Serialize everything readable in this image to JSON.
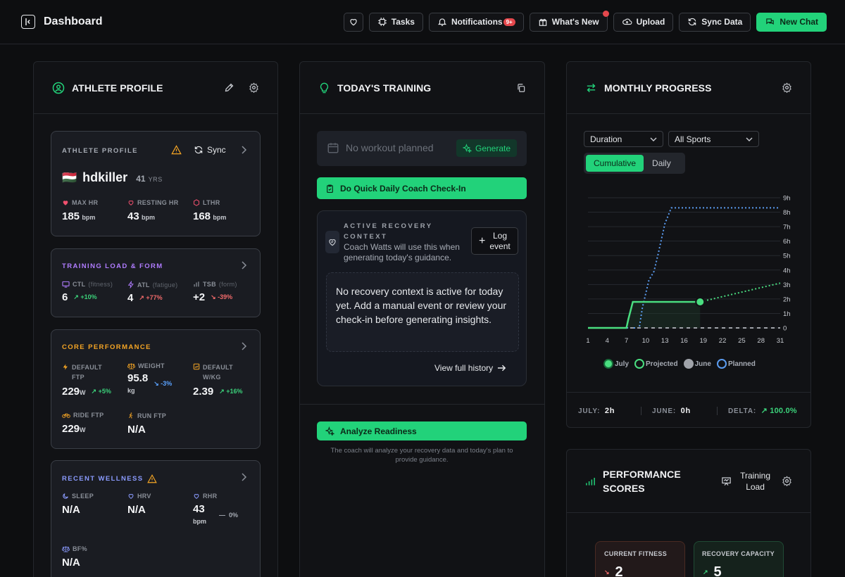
{
  "header": {
    "title": "Dashboard",
    "tasks_label": "Tasks",
    "notifications_label": "Notifications",
    "notifications_badge": "9+",
    "whats_new_label": "What's New",
    "upload_label": "Upload",
    "sync_label": "Sync Data",
    "new_chat_label": "New Chat"
  },
  "athlete_col": {
    "title": "ATHLETE PROFILE",
    "profile_card": {
      "title": "ATHLETE PROFILE",
      "sync_label": "Sync",
      "flag": "🇭🇺",
      "name": "hdkiller",
      "age": "41",
      "age_unit": "YRS",
      "metrics": [
        {
          "label": "MAX HR",
          "value": "185",
          "unit": "bpm"
        },
        {
          "label": "RESTING HR",
          "value": "43",
          "unit": "bpm"
        },
        {
          "label": "LTHR",
          "value": "168",
          "unit": "bpm"
        }
      ]
    },
    "training_load": {
      "title": "TRAINING LOAD & FORM",
      "metrics": [
        {
          "label": "CTL",
          "sub": "(fitness)",
          "value": "6",
          "trend": "+10%"
        },
        {
          "label": "ATL",
          "sub": "(fatigue)",
          "value": "4",
          "trend": "+77%"
        },
        {
          "label": "TSB",
          "sub": "(form)",
          "value": "+2",
          "trend": "-39%"
        }
      ]
    },
    "core_performance": {
      "title": "CORE PERFORMANCE",
      "ftp_label_1": "DEFAULT",
      "ftp_label_2": "FTP",
      "ftp_value": "229",
      "ftp_unit": "W",
      "ftp_trend": "+5%",
      "weight_label": "WEIGHT",
      "weight_value": "95.8",
      "weight_unit": "kg",
      "weight_trend": "-3%",
      "wkg_label_1": "DEFAULT",
      "wkg_label_2": "W/KG",
      "wkg_value": "2.39",
      "wkg_trend": "+16%",
      "ride_ftp_label": "RIDE FTP",
      "ride_ftp_value": "229",
      "ride_ftp_unit": "W",
      "run_ftp_label": "RUN FTP",
      "run_ftp_value": "N/A"
    },
    "wellness": {
      "title": "RECENT WELLNESS",
      "sleep_label": "SLEEP",
      "sleep_value": "N/A",
      "hrv_label": "HRV",
      "hrv_value": "N/A",
      "rhr_label": "RHR",
      "rhr_value": "43",
      "rhr_unit": "bpm",
      "rhr_trend": "0%",
      "bf_label": "BF%",
      "bf_value": "N/A"
    }
  },
  "training_col": {
    "title": "TODAY'S TRAINING",
    "no_workout": "No workout planned",
    "generate_label": "Generate",
    "checkin_label": "Do Quick Daily Coach Check-In",
    "recovery_title_1": "ACTIVE RECOVERY",
    "recovery_title_2": "CONTEXT",
    "recovery_desc_1": "Coach Watts will use this when",
    "recovery_desc_2": "generating today's guidance.",
    "log_event_1": "Log",
    "log_event_2": "event",
    "empty_text": "No recovery context is active for today yet. Add a manual event or review your check-in before generating insights.",
    "history_link": "View full history",
    "analyze_label": "Analyze Readiness",
    "analyze_note_1": "The coach will analyze your recovery data and today's plan to",
    "analyze_note_2": "provide guidance."
  },
  "progress_col": {
    "title": "MONTHLY PROGRESS",
    "metric_select": "Duration",
    "sport_select": "All Sports",
    "toggle_active": "Cumulative",
    "toggle_inactive": "Daily",
    "summary": {
      "july_label": "JULY:",
      "july_value": "2h",
      "june_label": "JUNE:",
      "june_value": "0h",
      "delta_label": "DELTA:",
      "delta_value": "100.0%"
    }
  },
  "performance_col": {
    "title_1": "PERFORMANCE",
    "title_2": "SCORES",
    "training_load_1": "Training",
    "training_load_2": "Load",
    "current_fitness_label": "CURRENT FITNESS",
    "current_fitness_value": "2",
    "recovery_capacity_label": "RECOVERY CAPACITY",
    "recovery_capacity_value": "5"
  },
  "chart_data": {
    "type": "line",
    "x_ticks": [
      1,
      4,
      7,
      10,
      13,
      16,
      19,
      22,
      25,
      28,
      31
    ],
    "y_ticks": [
      "0",
      "1h",
      "2h",
      "3h",
      "4h",
      "5h",
      "6h",
      "7h",
      "8h",
      "9h"
    ],
    "ylim": [
      0,
      9
    ],
    "xlim": [
      1,
      31
    ],
    "series": [
      {
        "name": "July",
        "color": "#4ade80",
        "style": "solid",
        "points": [
          [
            1,
            0
          ],
          [
            7,
            0
          ],
          [
            7.3,
            0.6
          ],
          [
            8,
            1.8
          ],
          [
            18.5,
            1.8
          ]
        ]
      },
      {
        "name": "Projected",
        "color": "#4ade80",
        "style": "dotted",
        "points": [
          [
            18.5,
            1.8
          ],
          [
            31,
            3.1
          ]
        ]
      },
      {
        "name": "June",
        "color": "#a0a3a9",
        "style": "dashed",
        "points": [
          [
            1,
            0
          ],
          [
            31,
            0
          ]
        ]
      },
      {
        "name": "Planned",
        "color": "#5b9cf0",
        "style": "dotted",
        "points": [
          [
            1,
            0
          ],
          [
            9,
            0
          ],
          [
            9.5,
            1.4
          ],
          [
            10.5,
            3.3
          ],
          [
            11.3,
            3.9
          ],
          [
            12,
            5.2
          ],
          [
            13,
            7.2
          ],
          [
            14,
            8.3
          ],
          [
            31,
            8.3
          ]
        ]
      }
    ]
  },
  "colors": {
    "accent": "#22d27a",
    "purple": "#b07cff",
    "amber": "#f5a524",
    "wellness_blue": "#8b9bff",
    "panel": "#111215",
    "card": "#1a1c22"
  }
}
